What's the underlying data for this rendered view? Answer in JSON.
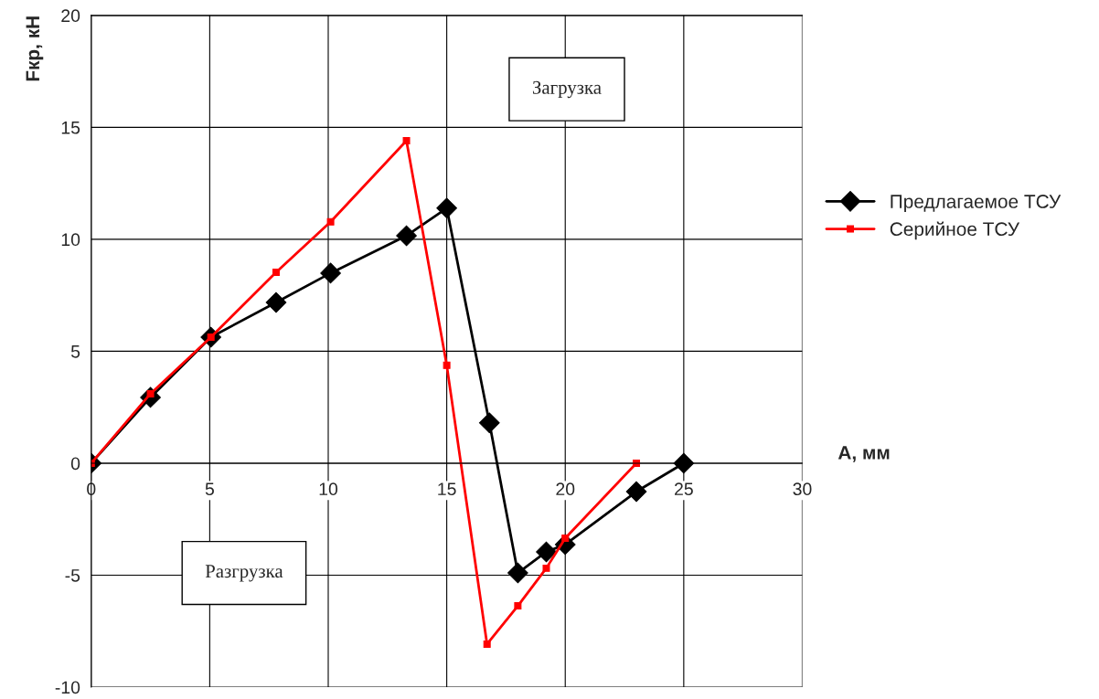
{
  "chart_data": {
    "type": "line",
    "xlabel": "A, мм",
    "ylabel": "Fкр, кН",
    "xlim": [
      0,
      30
    ],
    "xticks": [
      0,
      5,
      10,
      15,
      20,
      25,
      30
    ],
    "ylim": [
      -10,
      20
    ],
    "yticks": [
      -10,
      -5,
      0,
      5,
      10,
      15,
      20
    ],
    "grid": true,
    "legend": "right",
    "line_style": "solid",
    "annotations": [
      "Загрузка",
      "Разгрузка"
    ],
    "series": [
      {
        "name": "Предлагаемое ТСУ",
        "color": "#000000",
        "marker": "diamond",
        "x": [
          0,
          2.5,
          5.05,
          7.8,
          10.1,
          13.3,
          15.0,
          16.8,
          18.0,
          19.2,
          20.0,
          23.0,
          25.0
        ],
        "values": [
          0,
          2.94,
          5.63,
          7.18,
          8.49,
          10.16,
          11.39,
          1.8,
          -4.9,
          -3.96,
          -3.63,
          -1.27,
          0
        ]
      },
      {
        "name": "Серийное ТСУ",
        "color": "#ff0000",
        "marker": "square",
        "x": [
          0,
          2.5,
          5.05,
          7.8,
          10.1,
          13.3,
          15.0,
          16.7,
          18.0,
          19.2,
          20.0,
          23.0
        ],
        "values": [
          0,
          3.1,
          5.63,
          8.53,
          10.78,
          14.4,
          4.37,
          -8.08,
          -6.37,
          -4.69,
          -3.35,
          0
        ]
      }
    ]
  }
}
